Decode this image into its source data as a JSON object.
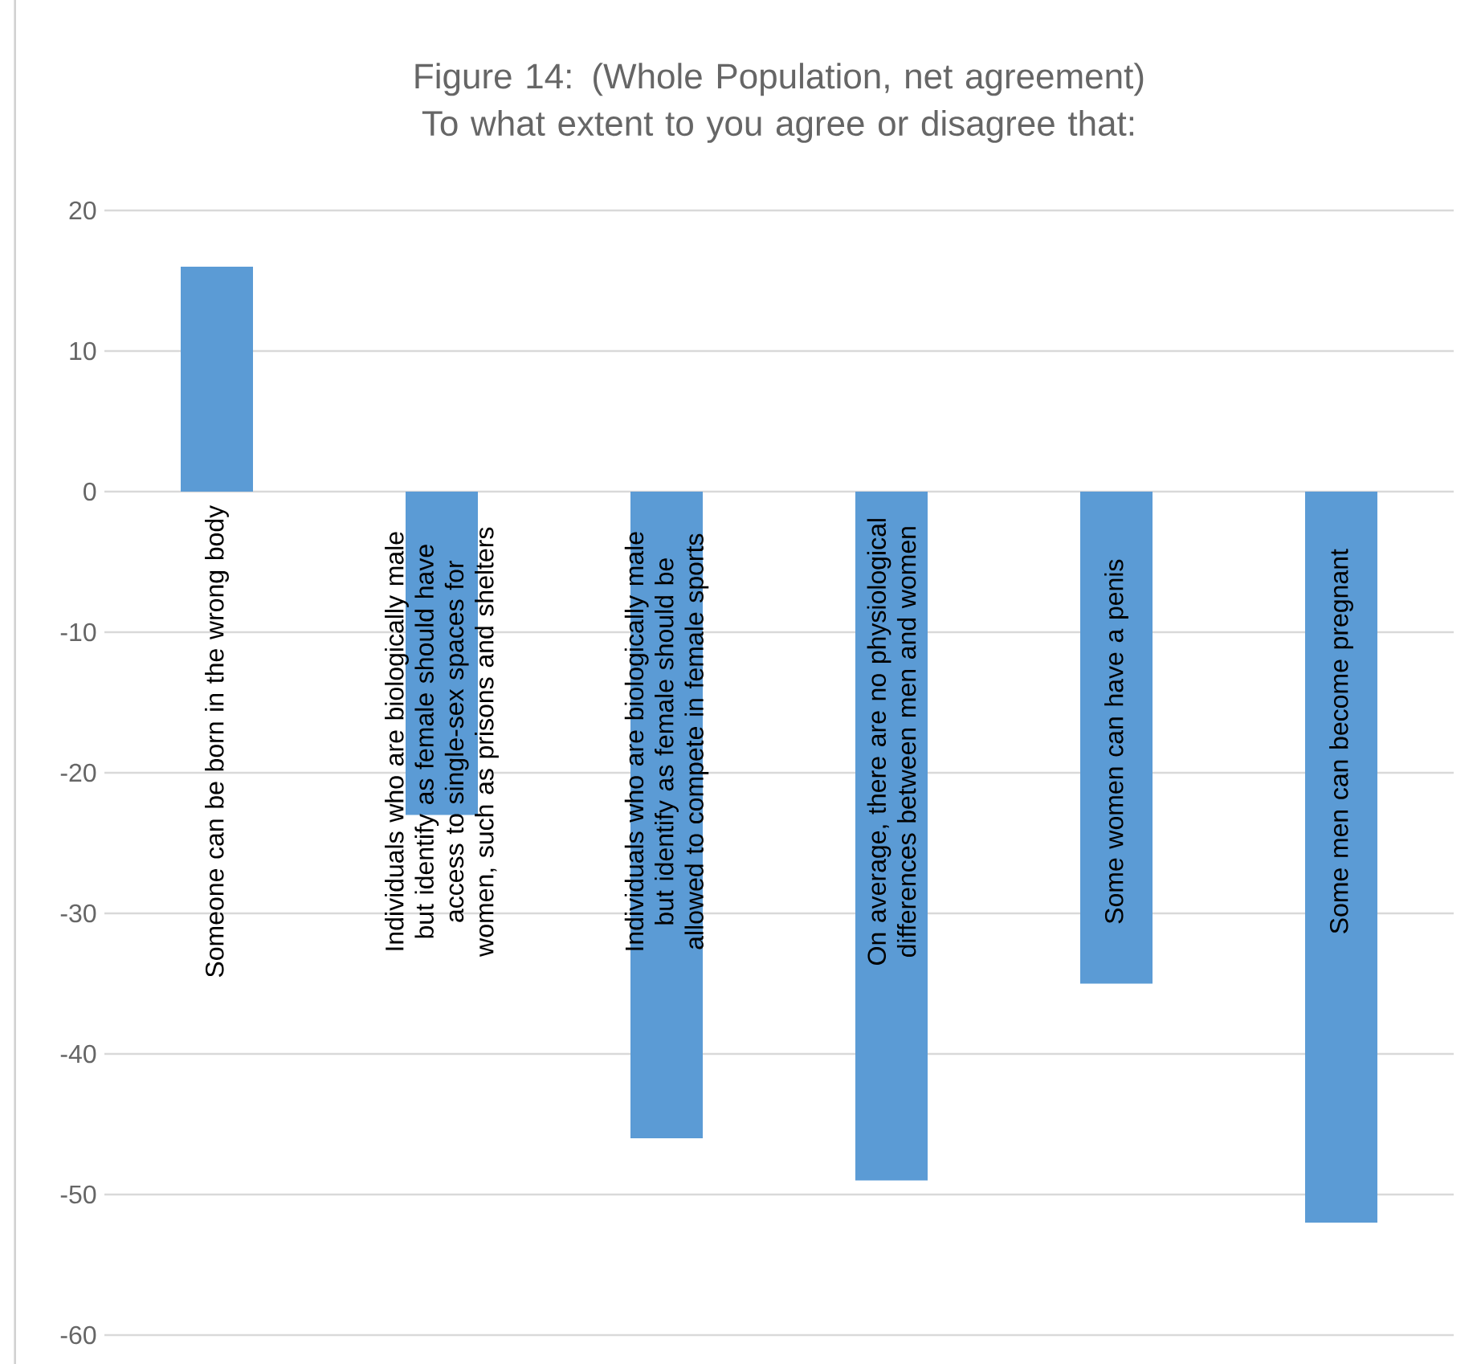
{
  "chart_data": {
    "type": "bar",
    "title": "Figure 14: (Whole Population, net agreement) To what extent to you agree or disagree that:",
    "categories": [
      "Someone can be born in the wrong body",
      "Individuals who are biologically male but identify as female should have access to single-sex spaces for women, such as prisons and shelters",
      "Individuals who are biologically male but identify as female should be allowed to compete in female sports",
      "On average, there are no physiological differences between men and women",
      "Some women can have a penis",
      "Some men can become pregnant"
    ],
    "values": [
      16,
      -23,
      -46,
      -49,
      -35,
      -52
    ],
    "color": "#5b9bd5",
    "ylim": [
      -60,
      20
    ],
    "yticks": [
      -60,
      -50,
      -40,
      -30,
      -20,
      -10,
      0,
      10,
      20
    ],
    "grid": "y"
  }
}
